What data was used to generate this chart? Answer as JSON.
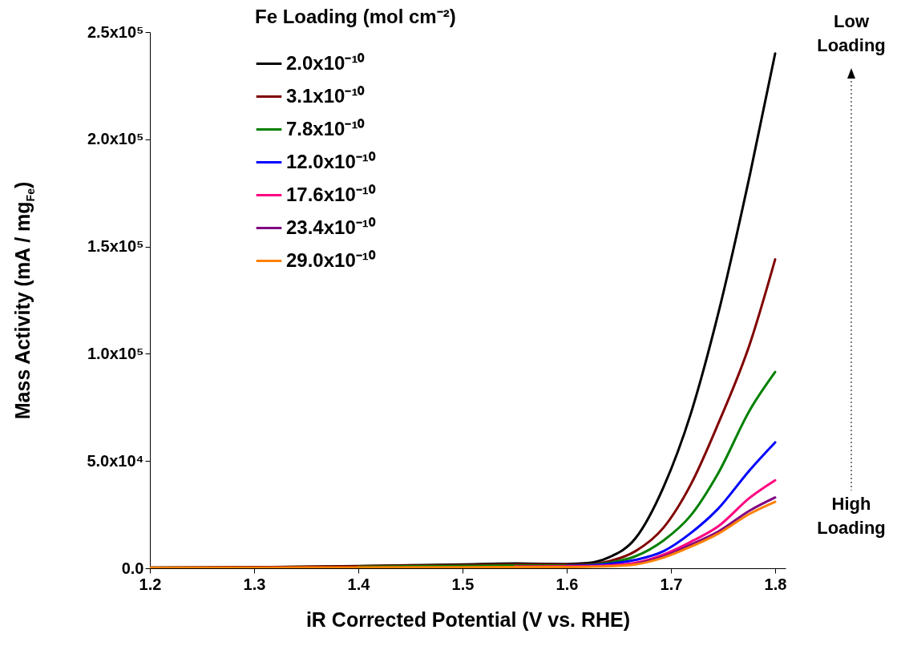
{
  "chart_data": {
    "type": "line",
    "xlabel": "iR Corrected Potential (V vs. RHE)",
    "ylabel": "Mass Activity (mA / mg$_{Fe}$)",
    "legend_title": "Fe Loading (mol cm⁻²)",
    "legend": "top left",
    "grid": false,
    "marker": "none",
    "line_style": "solid",
    "x": [
      1.2,
      1.3,
      1.4,
      1.5,
      1.55,
      1.6,
      1.62,
      1.64,
      1.666,
      1.693,
      1.719,
      1.745,
      1.776,
      1.8
    ],
    "xlim": [
      1.2,
      1.81
    ],
    "xticks": [
      1.2,
      1.3,
      1.4,
      1.5,
      1.6,
      1.7,
      1.8
    ],
    "ylim": [
      0,
      250000
    ],
    "yticks": [
      {
        "value": 0,
        "label": "0.0"
      },
      {
        "value": 50000,
        "label": "5.0x10⁴"
      },
      {
        "value": 100000,
        "label": "1.0x10⁵"
      },
      {
        "value": 150000,
        "label": "1.5x10⁵"
      },
      {
        "value": 200000,
        "label": "2.0x10⁵"
      },
      {
        "value": 250000,
        "label": "2.5x10⁵"
      }
    ],
    "series": [
      {
        "name": "2.0x10⁻¹⁰",
        "color": "#000000",
        "values": [
          300,
          500,
          1000,
          1800,
          2200,
          2000,
          2400,
          5000,
          14000,
          38000,
          72000,
          118000,
          184000,
          240000
        ]
      },
      {
        "name": "3.1x10⁻¹⁰",
        "color": "#800000",
        "values": [
          300,
          500,
          900,
          1500,
          1800,
          1700,
          1800,
          3200,
          8000,
          19000,
          39000,
          67000,
          105000,
          144000
        ]
      },
      {
        "name": "7.8x10⁻¹⁰",
        "color": "#008000",
        "values": [
          null,
          null,
          700,
          1100,
          1300,
          1300,
          1500,
          2500,
          5600,
          13000,
          24600,
          44000,
          74000,
          91500
        ]
      },
      {
        "name": "12.0x10⁻¹⁰",
        "color": "#0000ff",
        "values": [
          null,
          null,
          null,
          null,
          null,
          1100,
          1300,
          2000,
          3900,
          8000,
          16400,
          27600,
          46000,
          58700
        ]
      },
      {
        "name": "17.6x10⁻¹⁰",
        "color": "#ff0080",
        "values": [
          null,
          null,
          null,
          null,
          800,
          900,
          1000,
          1300,
          2500,
          6400,
          12300,
          19400,
          33000,
          41000
        ]
      },
      {
        "name": "23.4x10⁻¹⁰",
        "color": "#800080",
        "values": [
          null,
          null,
          null,
          null,
          null,
          null,
          null,
          null,
          2000,
          5500,
          11000,
          17000,
          27000,
          33000
        ]
      },
      {
        "name": "29.0x10⁻¹⁰",
        "color": "#ff8000",
        "values": [
          200,
          300,
          400,
          500,
          600,
          600,
          700,
          900,
          1800,
          5000,
          10000,
          16000,
          25500,
          31000
        ]
      }
    ],
    "annotations": [
      "Low Loading",
      "High Loading"
    ]
  }
}
